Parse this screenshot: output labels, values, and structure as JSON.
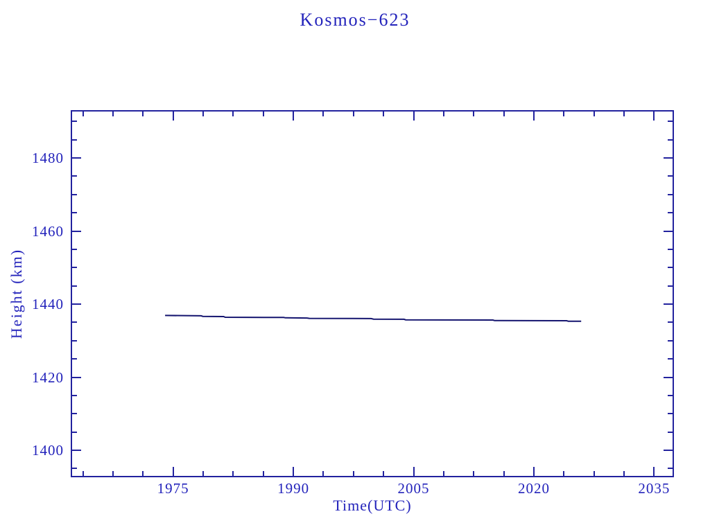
{
  "chart_data": {
    "type": "line",
    "title": "Kosmos−623",
    "xlabel": "Time(UTC)",
    "ylabel": "Height (km)",
    "xlim": [
      1962.4,
      2037.3
    ],
    "ylim": [
      1393.0,
      1492.7
    ],
    "xticks": [
      1975,
      1990,
      2005,
      2020,
      2035
    ],
    "yticks": [
      1400,
      1420,
      1440,
      1460,
      1480
    ],
    "x_minor_step": 3.75,
    "y_minor_step": 5,
    "grid": false,
    "legend_position": "none",
    "axis_color": "#22229e",
    "text_color": "#2323bb",
    "line_color": "#13136e",
    "series": [
      {
        "name": "orbit-height",
        "points": [
          [
            1974.0,
            1436.9
          ],
          [
            1978.5,
            1436.8
          ],
          [
            1978.7,
            1436.65
          ],
          [
            1981.3,
            1436.6
          ],
          [
            1981.5,
            1436.4
          ],
          [
            1988.8,
            1436.35
          ],
          [
            1989.0,
            1436.25
          ],
          [
            1991.7,
            1436.2
          ],
          [
            1992.0,
            1436.1
          ],
          [
            1999.7,
            1436.05
          ],
          [
            2000.0,
            1435.9
          ],
          [
            2003.8,
            1435.85
          ],
          [
            2004.0,
            1435.7
          ],
          [
            2014.9,
            1435.65
          ],
          [
            2015.1,
            1435.5
          ],
          [
            2024.1,
            1435.45
          ],
          [
            2024.3,
            1435.3
          ],
          [
            2025.9,
            1435.3
          ]
        ]
      }
    ]
  }
}
